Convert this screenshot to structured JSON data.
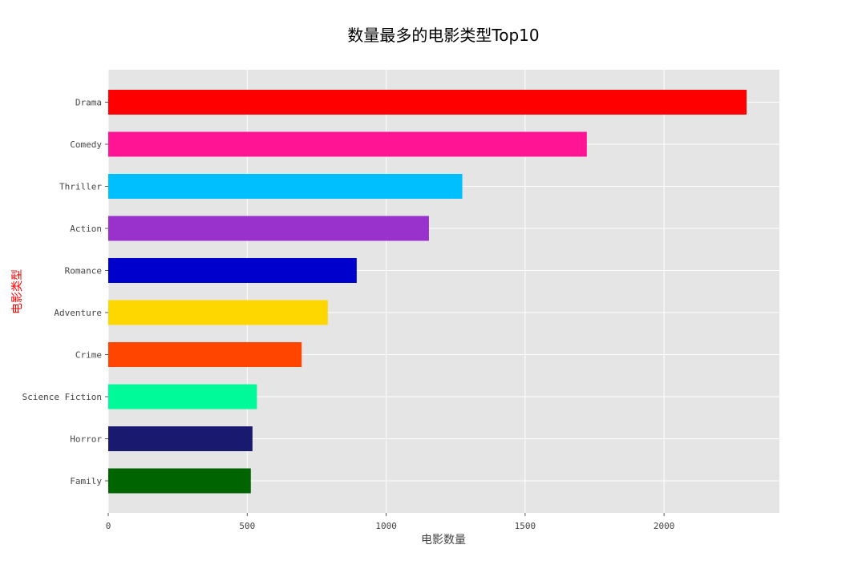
{
  "chart_data": {
    "type": "bar",
    "orientation": "horizontal",
    "title": "数量最多的电影类型Top10",
    "xlabel": "电影数量",
    "ylabel": "电影类型",
    "ylabel_color": "#ff0000",
    "categories": [
      "Drama",
      "Comedy",
      "Thriller",
      "Action",
      "Romance",
      "Adventure",
      "Crime",
      "Science Fiction",
      "Horror",
      "Family"
    ],
    "values": [
      2297,
      1722,
      1274,
      1154,
      894,
      790,
      696,
      535,
      519,
      513
    ],
    "colors": [
      "#ff0000",
      "#ff1493",
      "#00bfff",
      "#9932cc",
      "#0000cd",
      "#ffd700",
      "#ff4500",
      "#00fa9a",
      "#191970",
      "#006400"
    ],
    "xticks": [
      0,
      500,
      1000,
      1500,
      2000
    ],
    "xlim": [
      0,
      2415
    ],
    "grid": true,
    "plot_background": "#e5e5e5",
    "grid_color": "#ffffff"
  }
}
